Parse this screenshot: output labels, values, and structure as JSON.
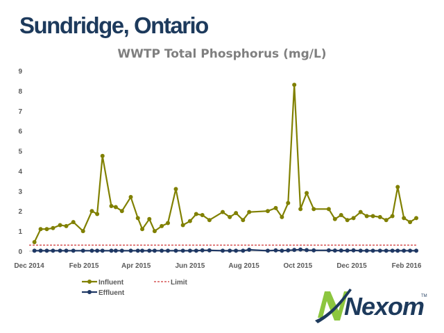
{
  "slide": {
    "title": "Sundridge, Ontario"
  },
  "logo": {
    "text": "Nexom",
    "tm": "TM"
  },
  "colors": {
    "influent": "#808000",
    "effluent": "#1f3864",
    "limit": "#c00000",
    "axis": "#bfbfbf",
    "title": "#1d3a5c",
    "logo_green": "#8cc63f",
    "logo_blue": "#1d3a5c"
  },
  "chart_data": {
    "type": "line",
    "title": "WWTP Total Phosphorus (mg/L)",
    "xlabel": "",
    "ylabel": "",
    "ylim": [
      0,
      9
    ],
    "yticks": [
      "0",
      "1",
      "2",
      "3",
      "4",
      "5",
      "6",
      "7",
      "8",
      "9"
    ],
    "xlim": [
      "2014-12-01",
      "2016-02-01"
    ],
    "xticks": [
      {
        "label": "Dec 2014",
        "date": "2014-12-01"
      },
      {
        "label": "Feb 2015",
        "date": "2015-02-01"
      },
      {
        "label": "Apr 2015",
        "date": "2015-04-01"
      },
      {
        "label": "Jun 2015",
        "date": "2015-06-01"
      },
      {
        "label": "Aug 2015",
        "date": "2015-08-01"
      },
      {
        "label": "Oct 2015",
        "date": "2015-10-01"
      },
      {
        "label": "Dec 2015",
        "date": "2015-12-01"
      },
      {
        "label": "Feb 2016",
        "date": "2016-02-01"
      }
    ],
    "grid": false,
    "legend": "bottom-left",
    "series": [
      {
        "name": "Influent",
        "style": "line-marker",
        "points": [
          [
            "2014-12-07",
            0.45
          ],
          [
            "2014-12-14",
            1.1
          ],
          [
            "2014-12-21",
            1.1
          ],
          [
            "2014-12-28",
            1.15
          ],
          [
            "2015-01-05",
            1.3
          ],
          [
            "2015-01-12",
            1.25
          ],
          [
            "2015-01-20",
            1.45
          ],
          [
            "2015-01-31",
            1.0
          ],
          [
            "2015-02-10",
            2.0
          ],
          [
            "2015-02-16",
            1.85
          ],
          [
            "2015-02-22",
            4.75
          ],
          [
            "2015-03-04",
            2.25
          ],
          [
            "2015-03-09",
            2.2
          ],
          [
            "2015-03-16",
            2.0
          ],
          [
            "2015-03-26",
            2.7
          ],
          [
            "2015-04-03",
            1.65
          ],
          [
            "2015-04-08",
            1.1
          ],
          [
            "2015-04-16",
            1.6
          ],
          [
            "2015-04-22",
            1.0
          ],
          [
            "2015-04-30",
            1.25
          ],
          [
            "2015-05-07",
            1.4
          ],
          [
            "2015-05-16",
            3.1
          ],
          [
            "2015-05-24",
            1.3
          ],
          [
            "2015-06-01",
            1.5
          ],
          [
            "2015-06-08",
            1.85
          ],
          [
            "2015-06-15",
            1.8
          ],
          [
            "2015-06-23",
            1.55
          ],
          [
            "2015-07-08",
            1.95
          ],
          [
            "2015-07-16",
            1.7
          ],
          [
            "2015-07-23",
            1.9
          ],
          [
            "2015-07-31",
            1.55
          ],
          [
            "2015-08-07",
            1.95
          ],
          [
            "2015-08-28",
            2.0
          ],
          [
            "2015-09-06",
            2.15
          ],
          [
            "2015-09-13",
            1.7
          ],
          [
            "2015-09-20",
            2.4
          ],
          [
            "2015-09-27",
            8.3
          ],
          [
            "2015-10-04",
            2.1
          ],
          [
            "2015-10-11",
            2.9
          ],
          [
            "2015-10-19",
            2.1
          ],
          [
            "2015-11-05",
            2.1
          ],
          [
            "2015-11-12",
            1.6
          ],
          [
            "2015-11-19",
            1.8
          ],
          [
            "2015-11-26",
            1.55
          ],
          [
            "2015-12-03",
            1.65
          ],
          [
            "2015-12-11",
            1.95
          ],
          [
            "2015-12-18",
            1.75
          ],
          [
            "2015-12-25",
            1.75
          ],
          [
            "2016-01-02",
            1.7
          ],
          [
            "2016-01-09",
            1.55
          ],
          [
            "2016-01-16",
            1.75
          ],
          [
            "2016-01-22",
            3.2
          ],
          [
            "2016-01-29",
            1.65
          ],
          [
            "2016-02-05",
            1.45
          ],
          [
            "2016-02-12",
            1.65
          ]
        ]
      },
      {
        "name": "Effluent",
        "style": "line-marker",
        "points": [
          [
            "2014-12-07",
            0.02
          ],
          [
            "2014-12-14",
            0.02
          ],
          [
            "2014-12-21",
            0.02
          ],
          [
            "2014-12-28",
            0.02
          ],
          [
            "2015-01-05",
            0.02
          ],
          [
            "2015-01-12",
            0.02
          ],
          [
            "2015-01-20",
            0.02
          ],
          [
            "2015-01-31",
            0.02
          ],
          [
            "2015-02-10",
            0.02
          ],
          [
            "2015-02-16",
            0.02
          ],
          [
            "2015-02-22",
            0.02
          ],
          [
            "2015-03-04",
            0.02
          ],
          [
            "2015-03-09",
            0.02
          ],
          [
            "2015-03-16",
            0.02
          ],
          [
            "2015-03-26",
            0.02
          ],
          [
            "2015-04-03",
            0.02
          ],
          [
            "2015-04-08",
            0.02
          ],
          [
            "2015-04-16",
            0.02
          ],
          [
            "2015-04-22",
            0.02
          ],
          [
            "2015-04-30",
            0.02
          ],
          [
            "2015-05-07",
            0.02
          ],
          [
            "2015-05-16",
            0.02
          ],
          [
            "2015-05-24",
            0.02
          ],
          [
            "2015-06-01",
            0.02
          ],
          [
            "2015-06-08",
            0.02
          ],
          [
            "2015-06-15",
            0.04
          ],
          [
            "2015-06-23",
            0.04
          ],
          [
            "2015-07-08",
            0.02
          ],
          [
            "2015-07-16",
            0.02
          ],
          [
            "2015-07-23",
            0.02
          ],
          [
            "2015-07-31",
            0.02
          ],
          [
            "2015-08-07",
            0.07
          ],
          [
            "2015-08-28",
            0.02
          ],
          [
            "2015-09-06",
            0.04
          ],
          [
            "2015-09-13",
            0.02
          ],
          [
            "2015-09-20",
            0.04
          ],
          [
            "2015-09-27",
            0.06
          ],
          [
            "2015-10-04",
            0.08
          ],
          [
            "2015-10-11",
            0.05
          ],
          [
            "2015-10-19",
            0.04
          ],
          [
            "2015-11-05",
            0.04
          ],
          [
            "2015-11-12",
            0.03
          ],
          [
            "2015-11-19",
            0.03
          ],
          [
            "2015-11-26",
            0.03
          ],
          [
            "2015-12-03",
            0.04
          ],
          [
            "2015-12-11",
            0.02
          ],
          [
            "2015-12-18",
            0.02
          ],
          [
            "2015-12-25",
            0.02
          ],
          [
            "2016-01-02",
            0.02
          ],
          [
            "2016-01-09",
            0.02
          ],
          [
            "2016-01-16",
            0.02
          ],
          [
            "2016-01-22",
            0.02
          ],
          [
            "2016-01-29",
            0.02
          ],
          [
            "2016-02-05",
            0.02
          ],
          [
            "2016-02-12",
            0.02
          ]
        ]
      },
      {
        "name": "Limit",
        "style": "dashed",
        "points": [
          [
            "2014-12-01",
            0.3
          ],
          [
            "2016-02-12",
            0.3
          ]
        ]
      }
    ]
  }
}
